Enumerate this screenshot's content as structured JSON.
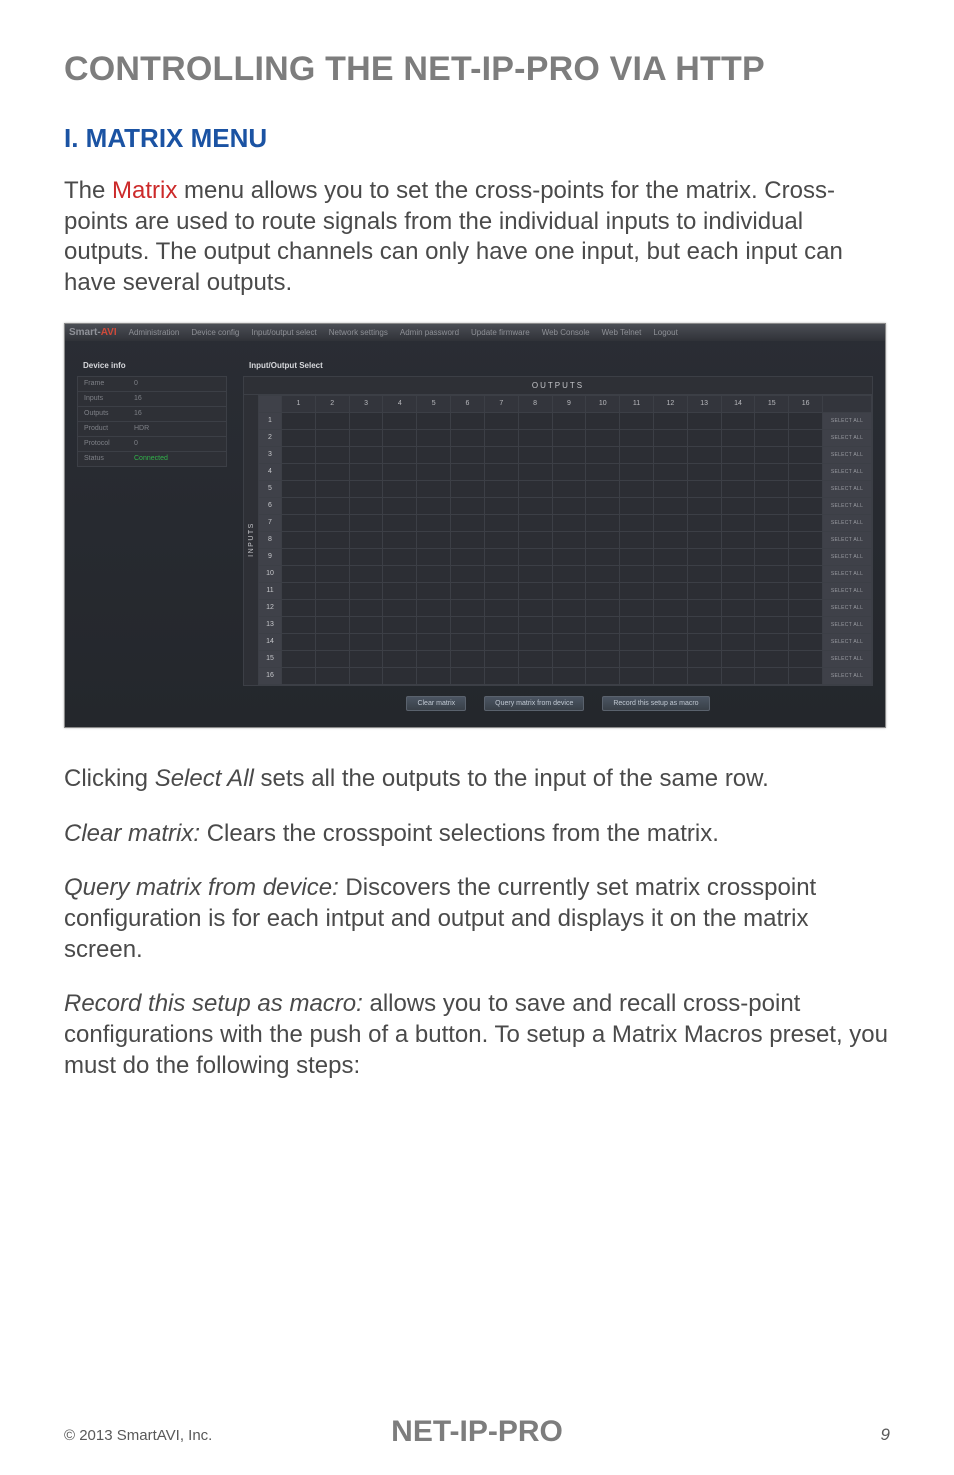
{
  "heading": "CONTROLLING THE NET-IP-PRO VIA HTTP",
  "subheading": "I. MATRIX MENU",
  "intro_pre": "The ",
  "intro_keyword": "Matrix",
  "intro_post": " menu allows you to set the cross-points for the matrix. Cross-points are used to route signals from the individual inputs to individual outputs. The output channels can only have one input, but each input can have several outputs.",
  "para_select_pre": "Clicking ",
  "para_select_em": "Select All",
  "para_select_post": " sets all the outputs to the input of the same row.",
  "para_clear_em": "Clear matrix:",
  "para_clear_post": " Clears the crosspoint selections from the matrix.",
  "para_query_em": "Query matrix from device:",
  "para_query_post": " Discovers the currently set matrix crosspoint configuration is for each intput and output and displays it on the matrix screen.",
  "para_record_em": "Record this setup as macro:",
  "para_record_post": " allows you to save and recall cross-point configurations with the push of a button. To setup a Matrix Macros preset, you must do the following steps:",
  "screenshot": {
    "logo_main": "Smart-",
    "logo_av": "AVI",
    "nav": [
      "Administration",
      "Device config",
      "Input/output select",
      "Network settings",
      "Admin password",
      "Update firmware",
      "Web Console",
      "Web Telnet",
      "Logout"
    ],
    "device_panel_title": "Device info",
    "device_rows": [
      {
        "k": "Frame",
        "v": "0"
      },
      {
        "k": "Inputs",
        "v": "16"
      },
      {
        "k": "Outputs",
        "v": "16"
      },
      {
        "k": "Product",
        "v": "HDR"
      },
      {
        "k": "Protocol",
        "v": "0"
      },
      {
        "k": "Status",
        "v": "Connected",
        "connected": true
      }
    ],
    "io_panel_title": "Input/Output Select",
    "outputs_label": "OUTPUTS",
    "inputs_label": "INPUTS",
    "column_headers": [
      "1",
      "2",
      "3",
      "4",
      "5",
      "6",
      "7",
      "8",
      "9",
      "10",
      "11",
      "12",
      "13",
      "14",
      "15",
      "16"
    ],
    "row_headers": [
      "1",
      "2",
      "3",
      "4",
      "5",
      "6",
      "7",
      "8",
      "9",
      "10",
      "11",
      "12",
      "13",
      "14",
      "15",
      "16"
    ],
    "select_all_label": "SELECT ALL",
    "buttons": [
      "Clear matrix",
      "Query matrix from device",
      "Record this setup as macro"
    ],
    "colors": {
      "bg": "#2a2d34",
      "panel_border": "#3c3f46",
      "cell_bg": "#2c2e34",
      "header_bg": "#3f4149",
      "text_dim": "#8e9096",
      "text_bright": "#d7d8dc",
      "connected": "#31b24a",
      "btn_bg_top": "#4b5562",
      "btn_bg_bot": "#394048"
    }
  },
  "footer": {
    "copyright": "© 2013 SmartAVI, Inc.",
    "product": "NET-IP-PRO",
    "page": "9"
  },
  "doc_colors": {
    "heading_gray": "#7d7d7d",
    "subheading_blue": "#1b53a3",
    "body_text": "#4a4a4a",
    "keyword_red": "#cc2a2a",
    "page_bg": "#ffffff"
  }
}
